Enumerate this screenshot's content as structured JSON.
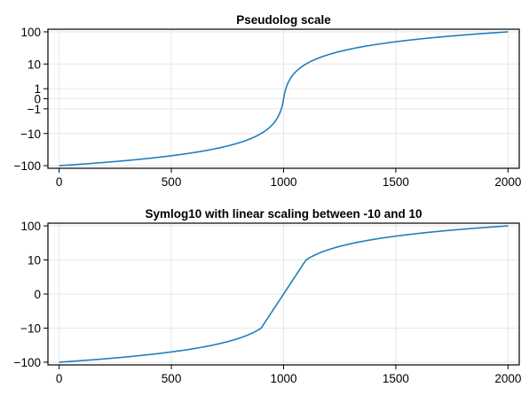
{
  "chart_data": [
    {
      "type": "line",
      "title": "Pseudolog scale",
      "xlabel": "",
      "ylabel": "",
      "y_scale": "pseudolog10",
      "xlim": [
        -50,
        2050
      ],
      "ylim": [
        -120,
        120
      ],
      "xticks": [
        0,
        500,
        1000,
        1500,
        2000
      ],
      "yticks": [
        -100,
        -10,
        -1,
        0,
        1,
        10,
        100
      ],
      "ytick_labels": [
        "−100",
        "−10",
        "−1",
        "0",
        "1",
        "10",
        "100"
      ],
      "grid": true,
      "series": [
        {
          "color": "#1f7fbf",
          "function": "y = (x - 1000) / 10",
          "x_range": [
            0,
            2000
          ]
        }
      ]
    },
    {
      "type": "line",
      "title": "Symlog10 with linear scaling between -10 and 10",
      "xlabel": "",
      "ylabel": "",
      "y_scale": "symlog10 (linear between -10 and 10)",
      "xlim": [
        -50,
        2050
      ],
      "ylim": [
        -120,
        120
      ],
      "xticks": [
        0,
        500,
        1000,
        1500,
        2000
      ],
      "yticks": [
        -100,
        -10,
        0,
        10,
        100
      ],
      "ytick_labels": [
        "−100",
        "−10",
        "0",
        "10",
        "100"
      ],
      "grid": true,
      "series": [
        {
          "color": "#1f7fbf",
          "function": "y = (x - 1000) / 10",
          "x_range": [
            0,
            2000
          ]
        }
      ]
    }
  ]
}
